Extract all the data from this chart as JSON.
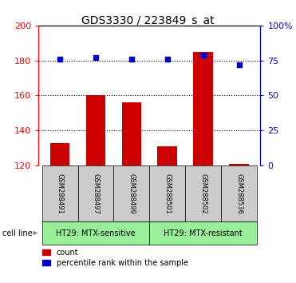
{
  "title": "GDS3330 / 223849_s_at",
  "categories": [
    "GSM288491",
    "GSM288497",
    "GSM288499",
    "GSM288501",
    "GSM288502",
    "GSM288536"
  ],
  "count_values": [
    133,
    160,
    156,
    131,
    185,
    121
  ],
  "percentile_values": [
    76,
    77,
    76,
    76,
    79,
    72
  ],
  "ylim_left": [
    120,
    200
  ],
  "ylim_right": [
    0,
    100
  ],
  "yticks_left": [
    120,
    140,
    160,
    180,
    200
  ],
  "yticks_right": [
    0,
    25,
    50,
    75,
    100
  ],
  "bar_color": "#cc0000",
  "scatter_color": "#0000cc",
  "group1_label": "HT29: MTX-sensitive",
  "group2_label": "HT29: MTX-resistant",
  "group1_indices": [
    0,
    1,
    2
  ],
  "group2_indices": [
    3,
    4,
    5
  ],
  "group_bg_color": "#99ee99",
  "sample_bg_color": "#cccccc",
  "cell_line_label": "cell line",
  "legend_count": "count",
  "legend_percentile": "percentile rank within the sample",
  "bar_width": 0.55,
  "baseline": 120,
  "title_fontsize": 10,
  "tick_fontsize": 8,
  "label_fontsize": 7,
  "sample_fontsize": 6
}
